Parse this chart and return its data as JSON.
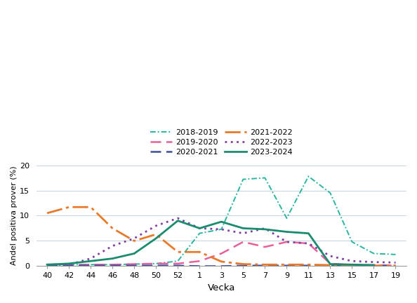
{
  "x_labels": [
    40,
    42,
    44,
    46,
    48,
    50,
    52,
    1,
    3,
    5,
    7,
    9,
    11,
    13,
    15,
    17,
    19
  ],
  "x_positions": [
    0,
    1,
    2,
    3,
    4,
    5,
    6,
    7,
    8,
    9,
    10,
    11,
    12,
    13,
    14,
    15,
    16
  ],
  "series": {
    "2018-2019": {
      "color": "#2ab5a0",
      "linestyle": "dashdot",
      "linewidth": 1.4,
      "dashes": [
        4,
        1.5,
        1,
        1.5
      ],
      "values": [
        0.3,
        0.3,
        0.3,
        0.3,
        0.4,
        0.5,
        1.0,
        6.5,
        7.3,
        17.2,
        17.5,
        9.5,
        17.8,
        14.5,
        4.8,
        2.5,
        2.3
      ]
    },
    "2019-2020": {
      "color": "#e8609a",
      "linestyle": "dashed",
      "linewidth": 1.8,
      "dashes": [
        6,
        3
      ],
      "values": [
        0.2,
        0.2,
        0.3,
        0.3,
        0.4,
        0.5,
        0.5,
        1.0,
        2.5,
        4.8,
        3.8,
        4.8,
        4.5,
        0.5,
        0.2,
        0.2,
        0.1
      ]
    },
    "2020-2021": {
      "color": "#3b4ea0",
      "linestyle": "dashed",
      "linewidth": 1.8,
      "dashes": [
        6,
        3
      ],
      "values": [
        0.1,
        0.1,
        0.1,
        0.1,
        0.1,
        0.1,
        0.1,
        0.0,
        0.0,
        0.1,
        0.1,
        0.1,
        0.1,
        0.1,
        0.1,
        0.1,
        0.1
      ]
    },
    "2021-2022": {
      "color": "#e87a2a",
      "linestyle": "dashdot",
      "linewidth": 2.0,
      "dashes": [
        8,
        2,
        1.5,
        2
      ],
      "values": [
        10.5,
        11.7,
        11.7,
        7.5,
        5.0,
        6.3,
        2.8,
        2.8,
        0.9,
        0.4,
        0.3,
        0.3,
        0.3,
        0.2,
        0.2,
        0.1,
        0.1
      ]
    },
    "2022-2023": {
      "color": "#8040a0",
      "linestyle": "dotted",
      "linewidth": 2.0,
      "dashes": [
        1,
        2
      ],
      "values": [
        0.3,
        0.3,
        1.5,
        4.0,
        5.5,
        8.0,
        9.5,
        7.5,
        7.3,
        6.5,
        7.5,
        4.8,
        4.5,
        2.0,
        1.0,
        0.8,
        0.7
      ]
    },
    "2023-2024": {
      "color": "#1a8c6e",
      "linestyle": "solid",
      "linewidth": 2.0,
      "dashes": null,
      "values": [
        0.3,
        0.5,
        1.0,
        1.5,
        2.5,
        5.5,
        9.0,
        7.5,
        8.8,
        7.5,
        7.3,
        6.8,
        6.5,
        0.4,
        0.3,
        0.2,
        null
      ]
    }
  },
  "ylabel": "Andel positiva prover (%)",
  "xlabel": "Vecka",
  "ylim": [
    0,
    20
  ],
  "yticks": [
    0,
    5,
    10,
    15,
    20
  ],
  "grid_color": "#c8d4dc",
  "background_color": "#ffffff",
  "legend_ncol": 2,
  "legend_order_left": [
    "2018-2019",
    "2020-2021",
    "2022-2023"
  ],
  "legend_order_right": [
    "2019-2020",
    "2021-2022",
    "2023-2024"
  ]
}
